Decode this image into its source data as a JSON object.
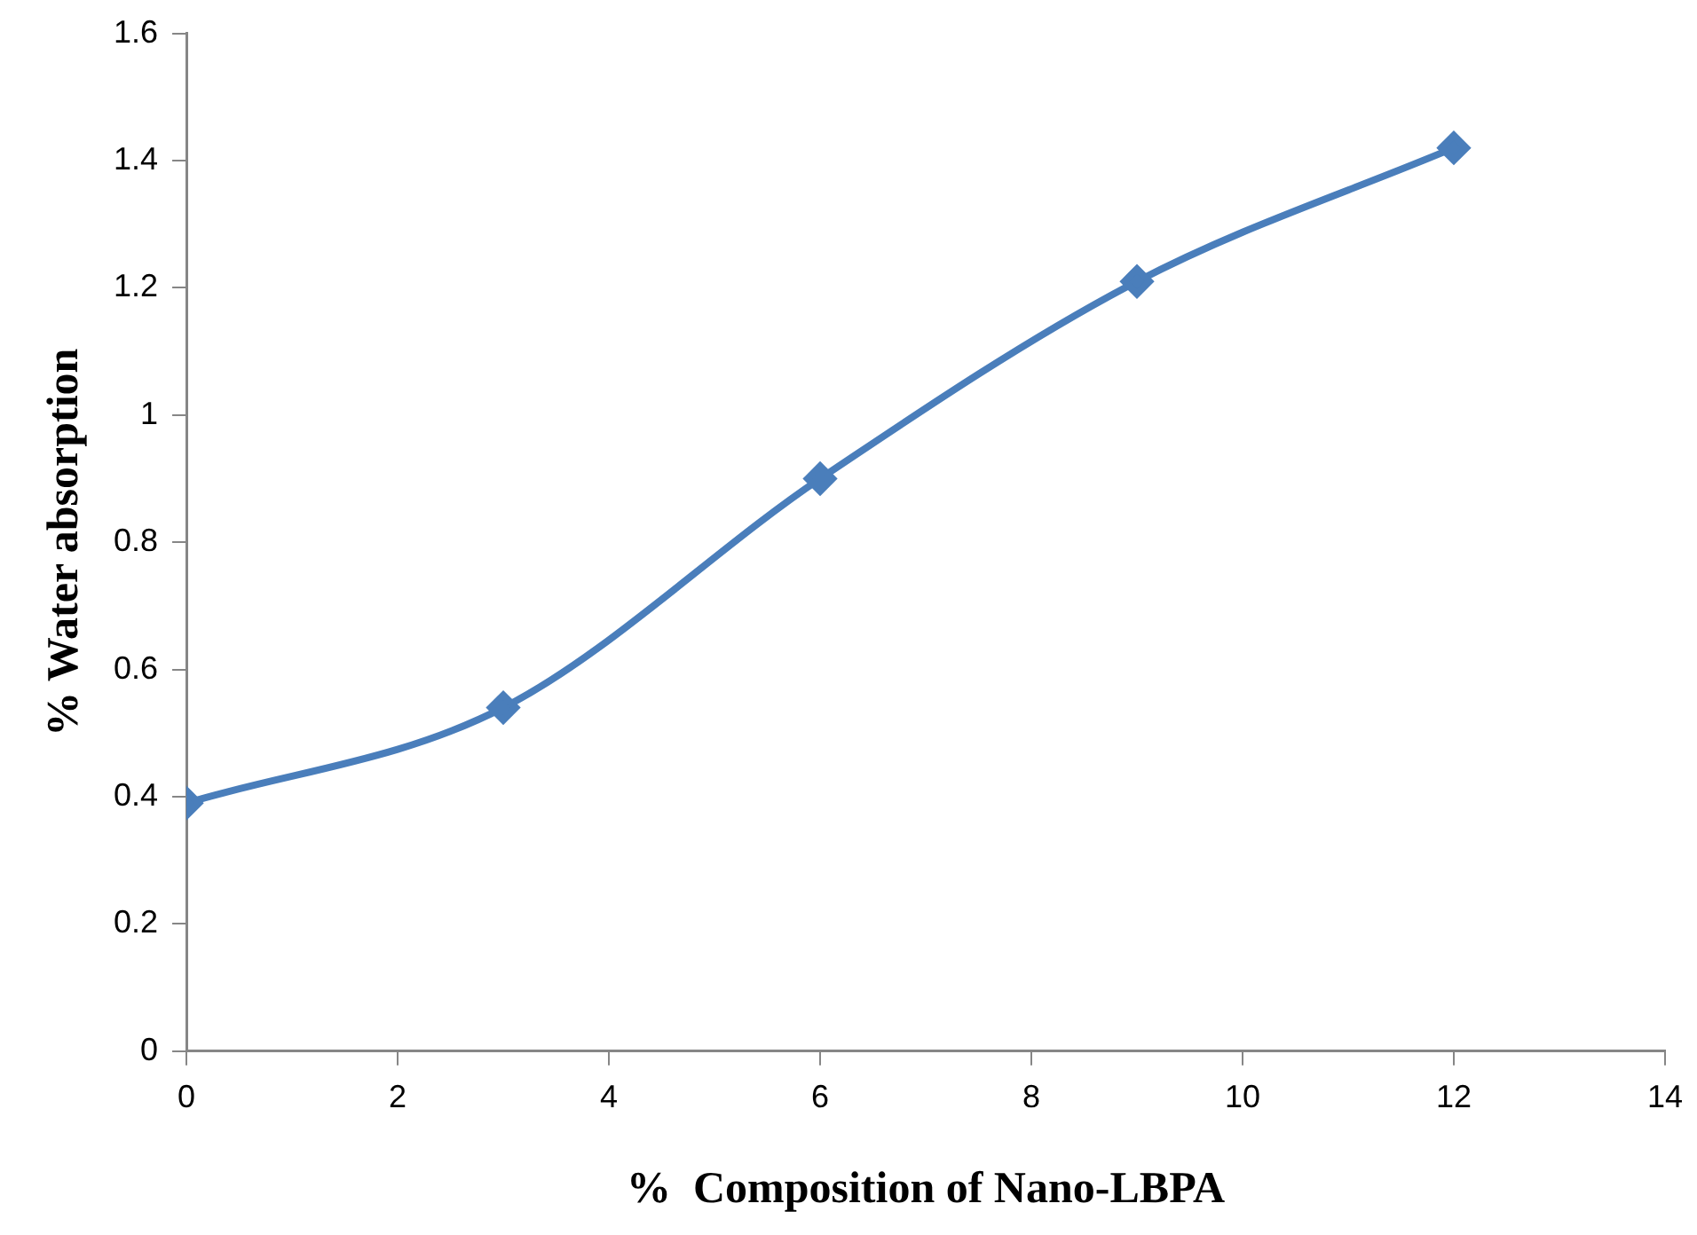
{
  "chart_data": {
    "type": "line",
    "xlabel": "%  Composition of Nano-LBPA",
    "ylabel": "% Water absorption",
    "x": [
      0,
      3,
      6,
      9,
      12
    ],
    "series": [
      {
        "color": "#4a7ebb",
        "values": [
          0.39,
          0.54,
          0.9,
          1.21,
          1.42
        ]
      }
    ],
    "xlim": [
      0,
      14
    ],
    "xticks": [
      0,
      2,
      4,
      6,
      8,
      10,
      12,
      14
    ],
    "ylim": [
      0,
      1.6
    ],
    "yticks": [
      0,
      0.2,
      0.4,
      0.6,
      0.8,
      1,
      1.2,
      1.4,
      1.6
    ],
    "grid": false,
    "legend": false,
    "marker": "diamond",
    "line_style": "solid"
  }
}
